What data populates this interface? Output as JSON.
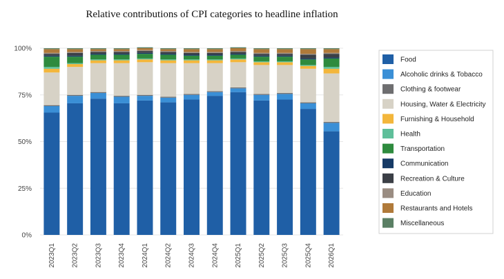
{
  "chart_data": {
    "type": "bar",
    "stacked": true,
    "title": "Relative contributions of CPI categories to headline inflation",
    "xlabel": "",
    "ylabel": "",
    "ylim": [
      0,
      100
    ],
    "y_ticks": [
      0,
      25,
      50,
      75,
      100
    ],
    "y_tick_labels": [
      "0%",
      "25%",
      "50%",
      "75%",
      "100%"
    ],
    "grid": true,
    "legend_position": "right",
    "categories": [
      "2023Q1",
      "2023Q2",
      "2023Q3",
      "2023Q4",
      "2024Q1",
      "2024Q2",
      "2024Q3",
      "2024Q4",
      "2025Q1",
      "2025Q2",
      "2025Q3",
      "2025Q4",
      "2026Q1"
    ],
    "series": [
      {
        "name": "Food",
        "color": "#1f5fa6",
        "values": [
          65.5,
          70.5,
          73,
          70.5,
          72,
          71,
          72.5,
          74.5,
          76.5,
          72,
          72.5,
          67.5,
          55.5
        ]
      },
      {
        "name": "Alcoholic drinks & Tobacco",
        "color": "#3a8fd6",
        "values": [
          3.5,
          4,
          3,
          3.5,
          2.5,
          2.5,
          2.5,
          2,
          2,
          3,
          3,
          3,
          4.5
        ]
      },
      {
        "name": "Clothing & footwear",
        "color": "#6e6e70",
        "values": [
          0.5,
          0.5,
          0.5,
          0.5,
          0.5,
          0.5,
          0.5,
          0.5,
          0.5,
          0.5,
          0.5,
          0.5,
          0.5
        ]
      },
      {
        "name": "Housing, Water & Electricity",
        "color": "#d7d2c6",
        "values": [
          17.5,
          15,
          15.5,
          17.5,
          17.5,
          18,
          16.5,
          15,
          13.5,
          15.5,
          15,
          18,
          26
        ]
      },
      {
        "name": "Furnishing & Household",
        "color": "#f3b63b",
        "values": [
          2,
          1.5,
          1.5,
          1.5,
          1.5,
          1.5,
          1.5,
          1.5,
          1.5,
          1.5,
          1.5,
          1.5,
          2.5
        ]
      },
      {
        "name": "Health",
        "color": "#5fbf9a",
        "values": [
          1,
          0.5,
          0.5,
          0.5,
          0.5,
          0.5,
          0.5,
          0.5,
          0.5,
          0.5,
          0.5,
          0.5,
          1
        ]
      },
      {
        "name": "Transportation",
        "color": "#2e8b3e",
        "values": [
          5.5,
          3.5,
          2.5,
          2.5,
          2.5,
          2.5,
          2,
          2,
          2,
          2.5,
          2.5,
          3,
          4.5
        ]
      },
      {
        "name": "Communication",
        "color": "#163a66",
        "values": [
          0.5,
          0.5,
          0.5,
          0.5,
          0.5,
          0.5,
          0.5,
          0.5,
          0.5,
          0.5,
          0.5,
          0.5,
          0.5
        ]
      },
      {
        "name": "Recreation & Culture",
        "color": "#3b3f46",
        "values": [
          1,
          1.5,
          1,
          1,
          1,
          1,
          1,
          1,
          1,
          1,
          1,
          2,
          2
        ]
      },
      {
        "name": "Education",
        "color": "#9a8d82",
        "values": [
          0.5,
          0.5,
          0.5,
          0.5,
          0.5,
          0.5,
          0.5,
          0.5,
          0.5,
          0.5,
          0.5,
          0.5,
          0.5
        ]
      },
      {
        "name": "Restaurants and Hotels",
        "color": "#b07a3a",
        "values": [
          2,
          1.5,
          1,
          1,
          1,
          1,
          1.5,
          1.5,
          1.5,
          2,
          2,
          2.5,
          2
        ]
      },
      {
        "name": "Miscellaneous",
        "color": "#5a7f64",
        "values": [
          0.5,
          0.5,
          0.5,
          0.5,
          0.5,
          0.5,
          0.5,
          0.5,
          0.5,
          0.5,
          0.5,
          0.5,
          0.5
        ]
      }
    ]
  }
}
